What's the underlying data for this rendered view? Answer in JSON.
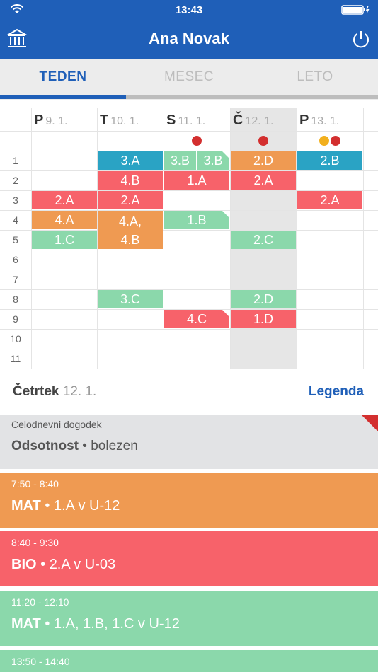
{
  "status": {
    "time": "13:43"
  },
  "header": {
    "title": "Ana Novak",
    "left_icon": "bank-icon",
    "right_icon": "power-icon"
  },
  "tabs": [
    {
      "label": "TEDEN",
      "active": true
    },
    {
      "label": "MESEC",
      "active": false
    },
    {
      "label": "LETO",
      "active": false
    }
  ],
  "days": [
    {
      "letter": "P",
      "date": "9. 1."
    },
    {
      "letter": "T",
      "date": "10. 1."
    },
    {
      "letter": "S",
      "date": "11. 1."
    },
    {
      "letter": "Č",
      "date": "12. 1."
    },
    {
      "letter": "P",
      "date": "13. 1."
    }
  ],
  "periods": [
    "1",
    "2",
    "3",
    "4",
    "5",
    "6",
    "7",
    "8",
    "9",
    "10",
    "11"
  ],
  "colors": {
    "blue": "#2aa3c4",
    "red": "#f7626a",
    "orange": "#ef9a52",
    "green": "#8bd8ab",
    "dot_red": "#d32f2f",
    "dot_yellow": "#f2b01e",
    "brand": "#1f5fb8"
  },
  "lessons": [
    {
      "day": 1,
      "period": 1,
      "span": 1,
      "label": "3.A",
      "color": "blue"
    },
    {
      "day": 2,
      "period": 1,
      "span": 1,
      "label": "3.B",
      "color": "green",
      "half": "left"
    },
    {
      "day": 2,
      "period": 1,
      "span": 1,
      "label": "3.B",
      "color": "green",
      "half": "right",
      "corner": true
    },
    {
      "day": 3,
      "period": 1,
      "span": 1,
      "label": "2.D",
      "color": "orange"
    },
    {
      "day": 4,
      "period": 1,
      "span": 1,
      "label": "2.B",
      "color": "blue"
    },
    {
      "day": 1,
      "period": 2,
      "span": 1,
      "label": "4.B",
      "color": "red"
    },
    {
      "day": 2,
      "period": 2,
      "span": 1,
      "label": "1.A",
      "color": "red"
    },
    {
      "day": 3,
      "period": 2,
      "span": 1,
      "label": "2.A",
      "color": "red"
    },
    {
      "day": 0,
      "period": 3,
      "span": 1,
      "label": "2.A",
      "color": "red"
    },
    {
      "day": 1,
      "period": 3,
      "span": 1,
      "label": "2.A",
      "color": "red"
    },
    {
      "day": 4,
      "period": 3,
      "span": 1,
      "label": "2.A",
      "color": "red"
    },
    {
      "day": 0,
      "period": 4,
      "span": 1,
      "label": "4.A",
      "color": "orange"
    },
    {
      "day": 1,
      "period": 4,
      "span": 2,
      "label": "4.A,\n4.B",
      "color": "orange"
    },
    {
      "day": 2,
      "period": 4,
      "span": 1,
      "label": "1.B",
      "color": "green",
      "corner": true
    },
    {
      "day": 0,
      "period": 5,
      "span": 1,
      "label": "1.C",
      "color": "green"
    },
    {
      "day": 3,
      "period": 5,
      "span": 1,
      "label": "2.C",
      "color": "green"
    },
    {
      "day": 1,
      "period": 8,
      "span": 1,
      "label": "3.C",
      "color": "green"
    },
    {
      "day": 3,
      "period": 8,
      "span": 1,
      "label": "2.D",
      "color": "green"
    },
    {
      "day": 2,
      "period": 9,
      "span": 1,
      "label": "4.C",
      "color": "red",
      "corner": true
    },
    {
      "day": 3,
      "period": 9,
      "span": 1,
      "label": "1.D",
      "color": "red"
    }
  ],
  "dots": [
    {
      "day": 2,
      "colors": [
        "dot_red"
      ]
    },
    {
      "day": 3,
      "colors": [
        "dot_red"
      ]
    },
    {
      "day": 4,
      "colors": [
        "dot_yellow",
        "dot_red"
      ]
    }
  ],
  "selected_day": {
    "name": "Četrtek",
    "date": "12. 1.",
    "legend": "Legenda"
  },
  "all_day_event": {
    "label": "Celodnevni dogodek",
    "title": "Odsotnost",
    "detail": "bolezen"
  },
  "events": [
    {
      "time": "7:50 - 8:40",
      "subject": "MAT",
      "detail": "1.A v U-12",
      "color": "orange"
    },
    {
      "time": "8:40  - 9:30",
      "subject": "BIO",
      "detail": "2.A v U-03",
      "color": "red"
    },
    {
      "time": "11:20 - 12:10",
      "subject": "MAT",
      "detail": "1.A, 1.B, 1.C v U-12",
      "color": "green"
    },
    {
      "time": "13:50 - 14:40",
      "subject": "",
      "detail": "",
      "color": "green"
    }
  ]
}
